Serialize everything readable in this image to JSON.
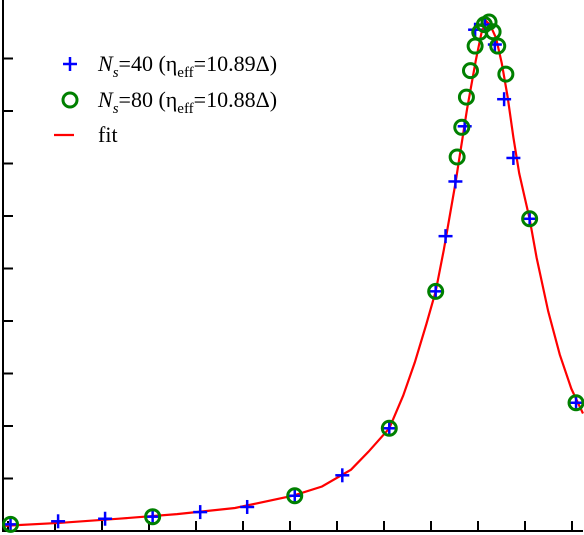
{
  "chart_data": {
    "type": "scatter",
    "title": "",
    "xlabel": "",
    "ylabel": "",
    "xlim": [
      0,
      100
    ],
    "ylim": [
      0,
      100
    ],
    "grid": false,
    "legend_position": "top-left",
    "legend": [
      {
        "sym": "plus",
        "color": "#0000ff",
        "prefix": "N",
        "sub1": "s",
        "mid": "=40 (η",
        "sub2": "eff",
        "suffix": "=10.89Δ)"
      },
      {
        "sym": "circle",
        "color": "#008000",
        "prefix": "N",
        "sub1": "s",
        "mid": "=80 (η",
        "sub2": "eff",
        "suffix": "=10.88Δ)"
      },
      {
        "sym": "line",
        "color": "#ff0000",
        "label": "fit"
      }
    ],
    "series": [
      {
        "name": "Ns=40 (ηeff=10.89Δ)",
        "marker": "plus",
        "color": "#0000ff",
        "points": [
          [
            1.3,
            1.3
          ],
          [
            9.5,
            1.9
          ],
          [
            17.6,
            2.4
          ],
          [
            25.8,
            2.8
          ],
          [
            34.0,
            3.7
          ],
          [
            42.1,
            4.7
          ],
          [
            50.3,
            6.9
          ],
          [
            58.5,
            10.9
          ],
          [
            66.6,
            20.1
          ],
          [
            74.6,
            46.9
          ],
          [
            76.3,
            57.7
          ],
          [
            78.0,
            68.4
          ],
          [
            79.6,
            79.2
          ],
          [
            81.4,
            98.1
          ],
          [
            83.1,
            99.1
          ],
          [
            84.8,
            95.2
          ],
          [
            86.4,
            84.5
          ],
          [
            88.0,
            73.0
          ],
          [
            90.8,
            61.1
          ],
          [
            98.8,
            25.1
          ]
        ]
      },
      {
        "name": "Ns=80 (ηeff=10.88Δ)",
        "marker": "circle",
        "color": "#008000",
        "points": [
          [
            1.3,
            1.3
          ],
          [
            25.8,
            2.8
          ],
          [
            50.3,
            6.9
          ],
          [
            66.6,
            20.1
          ],
          [
            74.6,
            46.9
          ],
          [
            78.3,
            73.2
          ],
          [
            79.1,
            79.0
          ],
          [
            79.9,
            84.9
          ],
          [
            80.6,
            90.1
          ],
          [
            81.4,
            94.9
          ],
          [
            82.2,
            97.6
          ],
          [
            83.0,
            99.1
          ],
          [
            83.8,
            99.6
          ],
          [
            84.5,
            97.7
          ],
          [
            85.3,
            94.9
          ],
          [
            86.7,
            89.4
          ],
          [
            90.8,
            61.1
          ],
          [
            98.8,
            25.1
          ]
        ]
      }
    ],
    "fit": {
      "name": "fit",
      "color": "#ff0000",
      "points": [
        [
          0.0,
          1.0
        ],
        [
          10.0,
          1.6
        ],
        [
          20.0,
          2.4
        ],
        [
          30.0,
          3.3
        ],
        [
          40.0,
          4.5
        ],
        [
          50.0,
          6.9
        ],
        [
          55.0,
          8.7
        ],
        [
          60.0,
          12.0
        ],
        [
          63.0,
          15.5
        ],
        [
          66.6,
          20.1
        ],
        [
          69.0,
          26.5
        ],
        [
          71.0,
          33.0
        ],
        [
          73.0,
          40.5
        ],
        [
          74.6,
          46.9
        ],
        [
          76.0,
          55.0
        ],
        [
          78.0,
          68.0
        ],
        [
          80.0,
          82.5
        ],
        [
          81.5,
          92.0
        ],
        [
          82.5,
          97.5
        ],
        [
          83.3,
          99.8
        ],
        [
          84.0,
          99.0
        ],
        [
          85.0,
          96.5
        ],
        [
          86.0,
          91.5
        ],
        [
          87.0,
          85.0
        ],
        [
          88.0,
          77.0
        ],
        [
          89.0,
          70.0
        ],
        [
          90.0,
          65.0
        ],
        [
          90.8,
          61.1
        ],
        [
          92.0,
          53.5
        ],
        [
          94.0,
          43.0
        ],
        [
          96.0,
          34.5
        ],
        [
          98.0,
          27.8
        ],
        [
          100.0,
          23.0
        ]
      ]
    }
  }
}
